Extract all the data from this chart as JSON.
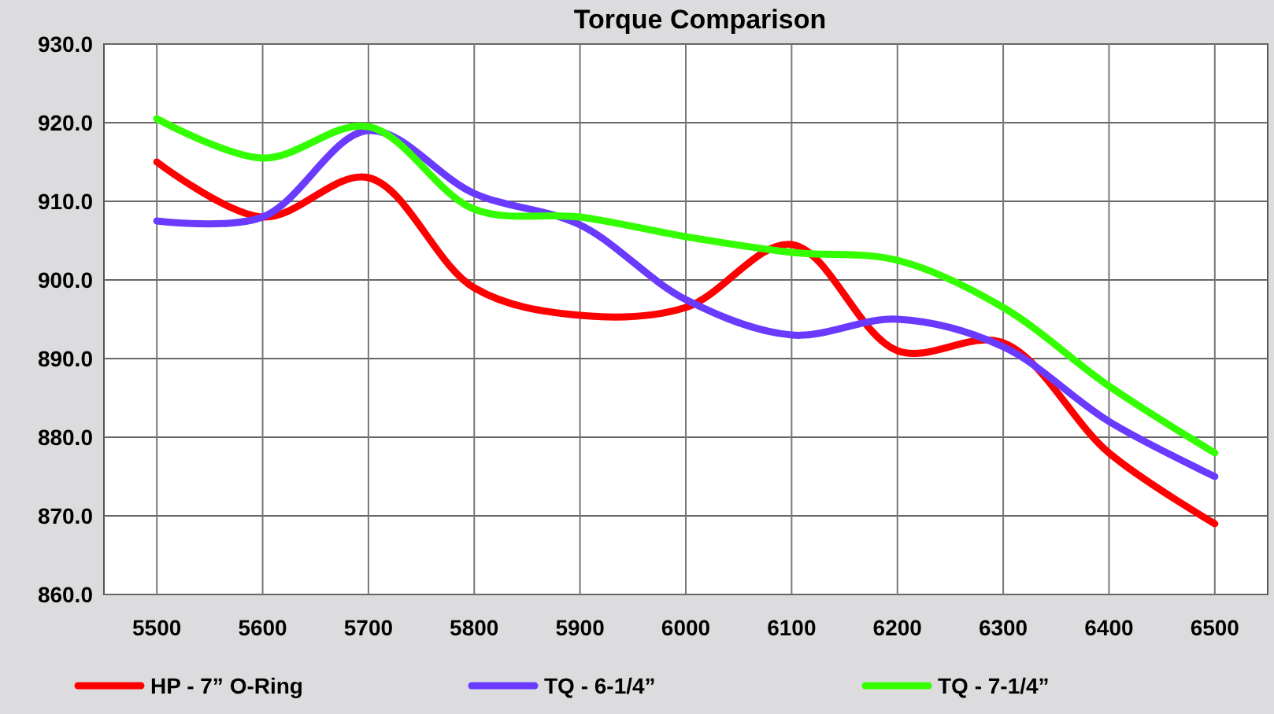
{
  "chart_data": {
    "type": "line",
    "title": "Torque Comparison",
    "categories": [
      "5500",
      "5600",
      "5700",
      "5800",
      "5900",
      "6000",
      "6100",
      "6200",
      "6300",
      "6400",
      "6500"
    ],
    "series": [
      {
        "name": "HP - 7” O-Ring",
        "color": "#ff0000",
        "values": [
          915,
          908,
          913,
          899,
          895.5,
          896.5,
          904.5,
          891,
          892,
          878,
          869
        ]
      },
      {
        "name": "TQ - 6-1/4”",
        "color": "#6a3bff",
        "values": [
          907.5,
          908,
          919,
          911,
          907,
          897.5,
          893,
          895,
          891.5,
          882,
          875
        ]
      },
      {
        "name": "TQ - 7-1/4”",
        "color": "#33ff00",
        "values": [
          920.5,
          915.5,
          919.5,
          909,
          908,
          905.5,
          903.5,
          902.5,
          896.5,
          886.5,
          878
        ]
      }
    ],
    "ylim": [
      860,
      930
    ],
    "yticks": [
      {
        "value": 860,
        "label": "860.0"
      },
      {
        "value": 870,
        "label": "870.0"
      },
      {
        "value": 880,
        "label": "880.0"
      },
      {
        "value": 890,
        "label": "890.0"
      },
      {
        "value": 900,
        "label": "900.0"
      },
      {
        "value": 910,
        "label": "910.0"
      },
      {
        "value": 920,
        "label": "920.0"
      },
      {
        "value": 930,
        "label": "930.0"
      }
    ],
    "grid": true,
    "legend": "bottom",
    "marker": "none",
    "line_style": "solid"
  }
}
